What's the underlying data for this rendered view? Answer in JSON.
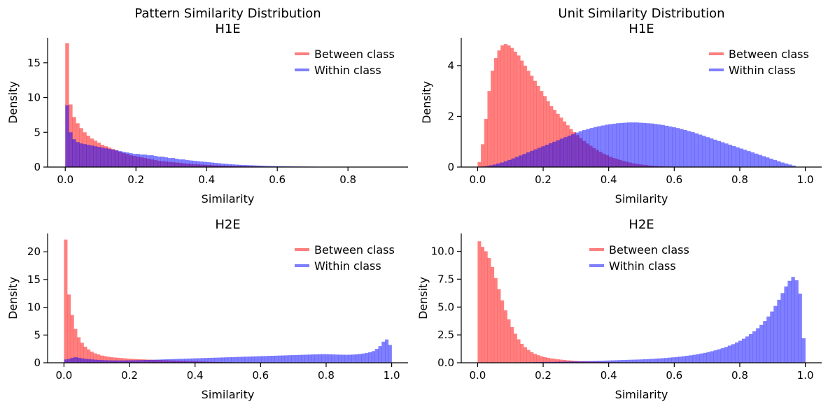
{
  "chart_data": [
    {
      "type": "histogram",
      "title": "Pattern Similarity Distribution\nH1E",
      "xlabel": "Similarity",
      "ylabel": "Density",
      "xlim": [
        -0.05,
        0.97
      ],
      "ylim": [
        0,
        18.6
      ],
      "xticks": [
        0.0,
        0.2,
        0.4,
        0.6,
        0.8
      ],
      "yticks": [
        0,
        5,
        10,
        15
      ],
      "legend_position": "top-right",
      "series": [
        {
          "name": "Between class",
          "color": "#ff0000",
          "bins": [
            0,
            0.6
          ],
          "values": [
            17.8,
            9.0,
            7.2,
            6.3,
            5.6,
            5.0,
            4.5,
            4.1,
            3.8,
            3.5,
            3.2,
            3.0,
            2.8,
            2.6,
            2.4,
            2.2,
            2.0,
            1.9,
            1.7,
            1.6,
            1.5,
            1.4,
            1.3,
            1.2,
            1.1,
            1.0,
            0.9,
            0.85,
            0.8,
            0.75,
            0.7,
            0.65,
            0.6,
            0.55,
            0.5,
            0.45,
            0.42,
            0.38,
            0.35,
            0.32,
            0.3,
            0.27,
            0.25,
            0.23,
            0.21,
            0.19,
            0.17,
            0.16,
            0.14,
            0.13,
            0.12,
            0.11,
            0.1,
            0.09,
            0.08,
            0.07,
            0.06,
            0.05,
            0.04,
            0.03
          ]
        },
        {
          "name": "Within class",
          "color": "#0000ff",
          "bins": [
            0,
            0.94
          ],
          "values": [
            8.9,
            5.0,
            4.0,
            3.6,
            3.4,
            3.3,
            3.2,
            3.1,
            3.0,
            2.9,
            2.8,
            2.7,
            2.6,
            2.5,
            2.4,
            2.3,
            2.2,
            2.1,
            2.0,
            1.9,
            1.9,
            1.8,
            1.8,
            1.7,
            1.7,
            1.6,
            1.5,
            1.5,
            1.4,
            1.3,
            1.3,
            1.2,
            1.1,
            1.1,
            1.0,
            0.95,
            0.9,
            0.85,
            0.8,
            0.75,
            0.7,
            0.65,
            0.6,
            0.55,
            0.5,
            0.46,
            0.42,
            0.38,
            0.35,
            0.32,
            0.3,
            0.28,
            0.26,
            0.24,
            0.22,
            0.2,
            0.18,
            0.16,
            0.15,
            0.14,
            0.13,
            0.12,
            0.11,
            0.1,
            0.09,
            0.08,
            0.08,
            0.07,
            0.07,
            0.06,
            0.06,
            0.05,
            0.05,
            0.04,
            0.04,
            0.04,
            0.03,
            0.03,
            0.03,
            0.03,
            0.02,
            0.02,
            0.02,
            0.02,
            0.02,
            0.02,
            0.01,
            0.01,
            0.01,
            0.01,
            0.01,
            0.01,
            0.01,
            0.01
          ]
        }
      ]
    },
    {
      "type": "histogram",
      "title": "Unit Similarity Distribution\nH1E",
      "xlabel": "Similarity",
      "ylabel": "Density",
      "xlim": [
        -0.05,
        1.05
      ],
      "ylim": [
        0,
        5.1
      ],
      "xticks": [
        0.0,
        0.2,
        0.4,
        0.6,
        0.8,
        1.0
      ],
      "yticks": [
        0,
        2,
        4
      ],
      "legend_position": "top-right",
      "series": [
        {
          "name": "Between class",
          "color": "#ff0000",
          "bins": [
            0,
            0.6
          ],
          "values": [
            0.2,
            0.9,
            1.9,
            3.0,
            3.8,
            4.3,
            4.6,
            4.8,
            4.85,
            4.8,
            4.7,
            4.55,
            4.4,
            4.2,
            4.0,
            3.8,
            3.6,
            3.4,
            3.2,
            3.0,
            2.8,
            2.6,
            2.4,
            2.25,
            2.1,
            1.95,
            1.8,
            1.65,
            1.5,
            1.38,
            1.26,
            1.14,
            1.03,
            0.93,
            0.84,
            0.75,
            0.67,
            0.6,
            0.53,
            0.47,
            0.41,
            0.36,
            0.32,
            0.28,
            0.24,
            0.21,
            0.18,
            0.15,
            0.13,
            0.11,
            0.09,
            0.08,
            0.06,
            0.05,
            0.04,
            0.03,
            0.03,
            0.02,
            0.02,
            0.01
          ]
        },
        {
          "name": "Within class",
          "color": "#0000ff",
          "bins": [
            0,
            0.97
          ],
          "values": [
            0.01,
            0.02,
            0.04,
            0.07,
            0.1,
            0.14,
            0.18,
            0.23,
            0.28,
            0.34,
            0.4,
            0.46,
            0.52,
            0.58,
            0.64,
            0.7,
            0.76,
            0.82,
            0.88,
            0.94,
            1.0,
            1.06,
            1.12,
            1.18,
            1.24,
            1.3,
            1.36,
            1.41,
            1.46,
            1.5,
            1.54,
            1.58,
            1.61,
            1.64,
            1.67,
            1.69,
            1.71,
            1.73,
            1.74,
            1.75,
            1.76,
            1.76,
            1.76,
            1.75,
            1.74,
            1.73,
            1.72,
            1.7,
            1.68,
            1.66,
            1.63,
            1.6,
            1.57,
            1.54,
            1.5,
            1.46,
            1.42,
            1.38,
            1.33,
            1.28,
            1.23,
            1.18,
            1.13,
            1.08,
            1.03,
            0.98,
            0.93,
            0.88,
            0.83,
            0.78,
            0.73,
            0.68,
            0.63,
            0.58,
            0.53,
            0.48,
            0.43,
            0.38,
            0.33,
            0.28,
            0.23,
            0.18,
            0.14,
            0.1,
            0.06
          ]
        }
      ]
    },
    {
      "type": "histogram",
      "title": "H2E",
      "xlabel": "Similarity",
      "ylabel": "Density",
      "xlim": [
        -0.05,
        1.05
      ],
      "ylim": [
        0,
        23.3
      ],
      "xticks": [
        0.0,
        0.2,
        0.4,
        0.6,
        0.8,
        1.0
      ],
      "yticks": [
        0,
        5,
        10,
        15,
        20
      ],
      "legend_position": "top-right",
      "series": [
        {
          "name": "Between class",
          "color": "#ff0000",
          "bins": [
            0,
            0.6
          ],
          "values": [
            22.2,
            12.3,
            8.6,
            6.1,
            4.6,
            3.6,
            2.9,
            2.4,
            2.0,
            1.7,
            1.5,
            1.3,
            1.2,
            1.1,
            1.0,
            0.95,
            0.9,
            0.85,
            0.8,
            0.75,
            0.7,
            0.68,
            0.65,
            0.62,
            0.6,
            0.57,
            0.55,
            0.52,
            0.5,
            0.48,
            0.46,
            0.44,
            0.42,
            0.4,
            0.38,
            0.36,
            0.34,
            0.32,
            0.3,
            0.28,
            0.26,
            0.24,
            0.22,
            0.2,
            0.18,
            0.16,
            0.14,
            0.12,
            0.1,
            0.09,
            0.08,
            0.07,
            0.06,
            0.05,
            0.04,
            0.03,
            0.03,
            0.02,
            0.02,
            0.01
          ]
        },
        {
          "name": "Within class",
          "color": "#0000ff",
          "bins": [
            0,
            1.0
          ],
          "values": [
            0.6,
            0.7,
            0.9,
            1.0,
            0.9,
            0.8,
            0.7,
            0.65,
            0.6,
            0.55,
            0.5,
            0.48,
            0.46,
            0.44,
            0.43,
            0.42,
            0.42,
            0.42,
            0.43,
            0.44,
            0.45,
            0.46,
            0.47,
            0.48,
            0.5,
            0.52,
            0.54,
            0.56,
            0.58,
            0.6,
            0.62,
            0.64,
            0.66,
            0.68,
            0.7,
            0.72,
            0.74,
            0.76,
            0.78,
            0.8,
            0.82,
            0.84,
            0.86,
            0.88,
            0.9,
            0.92,
            0.94,
            0.96,
            0.98,
            1.0,
            1.02,
            1.04,
            1.06,
            1.08,
            1.1,
            1.12,
            1.14,
            1.16,
            1.18,
            1.2,
            1.22,
            1.24,
            1.26,
            1.28,
            1.3,
            1.32,
            1.34,
            1.36,
            1.38,
            1.4,
            1.42,
            1.44,
            1.46,
            1.48,
            1.5,
            1.52,
            1.54,
            1.56,
            1.55,
            1.53,
            1.5,
            1.48,
            1.46,
            1.45,
            1.44,
            1.45,
            1.48,
            1.52,
            1.58,
            1.66,
            1.76,
            1.9,
            2.1,
            2.5,
            3.0,
            3.8,
            4.2,
            3.2
          ]
        }
      ]
    },
    {
      "type": "histogram",
      "title": "H2E",
      "xlabel": "Similarity",
      "ylabel": "Density",
      "xlim": [
        -0.05,
        1.05
      ],
      "ylim": [
        0,
        11.6
      ],
      "xticks": [
        0.0,
        0.2,
        0.4,
        0.6,
        0.8,
        1.0
      ],
      "yticks": [
        0.0,
        2.5,
        5.0,
        7.5,
        10.0
      ],
      "legend_position": "top-center",
      "series": [
        {
          "name": "Between class",
          "color": "#ff0000",
          "bins": [
            0,
            0.6
          ],
          "values": [
            10.9,
            10.4,
            10.0,
            9.4,
            8.6,
            7.6,
            6.6,
            5.6,
            4.7,
            3.9,
            3.2,
            2.6,
            2.1,
            1.7,
            1.4,
            1.15,
            0.95,
            0.8,
            0.68,
            0.58,
            0.5,
            0.44,
            0.39,
            0.35,
            0.31,
            0.28,
            0.25,
            0.22,
            0.2,
            0.18,
            0.16,
            0.14,
            0.13,
            0.12,
            0.11,
            0.1,
            0.09,
            0.08,
            0.07,
            0.06,
            0.05,
            0.05,
            0.04,
            0.04,
            0.03,
            0.03,
            0.03,
            0.02,
            0.02,
            0.02,
            0.02,
            0.01,
            0.01,
            0.01,
            0.01,
            0.01,
            0.01,
            0.01,
            0.01,
            0.01
          ]
        },
        {
          "name": "Within class",
          "color": "#0000ff",
          "bins": [
            0,
            1.0
          ],
          "values": [
            0.01,
            0.01,
            0.01,
            0.01,
            0.01,
            0.02,
            0.02,
            0.02,
            0.02,
            0.03,
            0.03,
            0.03,
            0.04,
            0.04,
            0.05,
            0.05,
            0.06,
            0.06,
            0.07,
            0.07,
            0.08,
            0.08,
            0.09,
            0.1,
            0.1,
            0.11,
            0.12,
            0.12,
            0.13,
            0.14,
            0.15,
            0.15,
            0.16,
            0.17,
            0.18,
            0.19,
            0.2,
            0.21,
            0.22,
            0.23,
            0.24,
            0.25,
            0.26,
            0.27,
            0.28,
            0.29,
            0.3,
            0.32,
            0.33,
            0.35,
            0.37,
            0.39,
            0.41,
            0.43,
            0.46,
            0.49,
            0.52,
            0.55,
            0.59,
            0.63,
            0.67,
            0.72,
            0.77,
            0.83,
            0.89,
            0.96,
            1.04,
            1.12,
            1.21,
            1.31,
            1.42,
            1.54,
            1.67,
            1.82,
            1.98,
            2.16,
            2.36,
            2.58,
            2.82,
            3.1,
            3.4,
            3.75,
            4.15,
            4.6,
            5.1,
            5.65,
            6.25,
            6.85,
            7.35,
            7.7,
            7.4,
            6.2,
            2.2
          ]
        }
      ]
    }
  ]
}
